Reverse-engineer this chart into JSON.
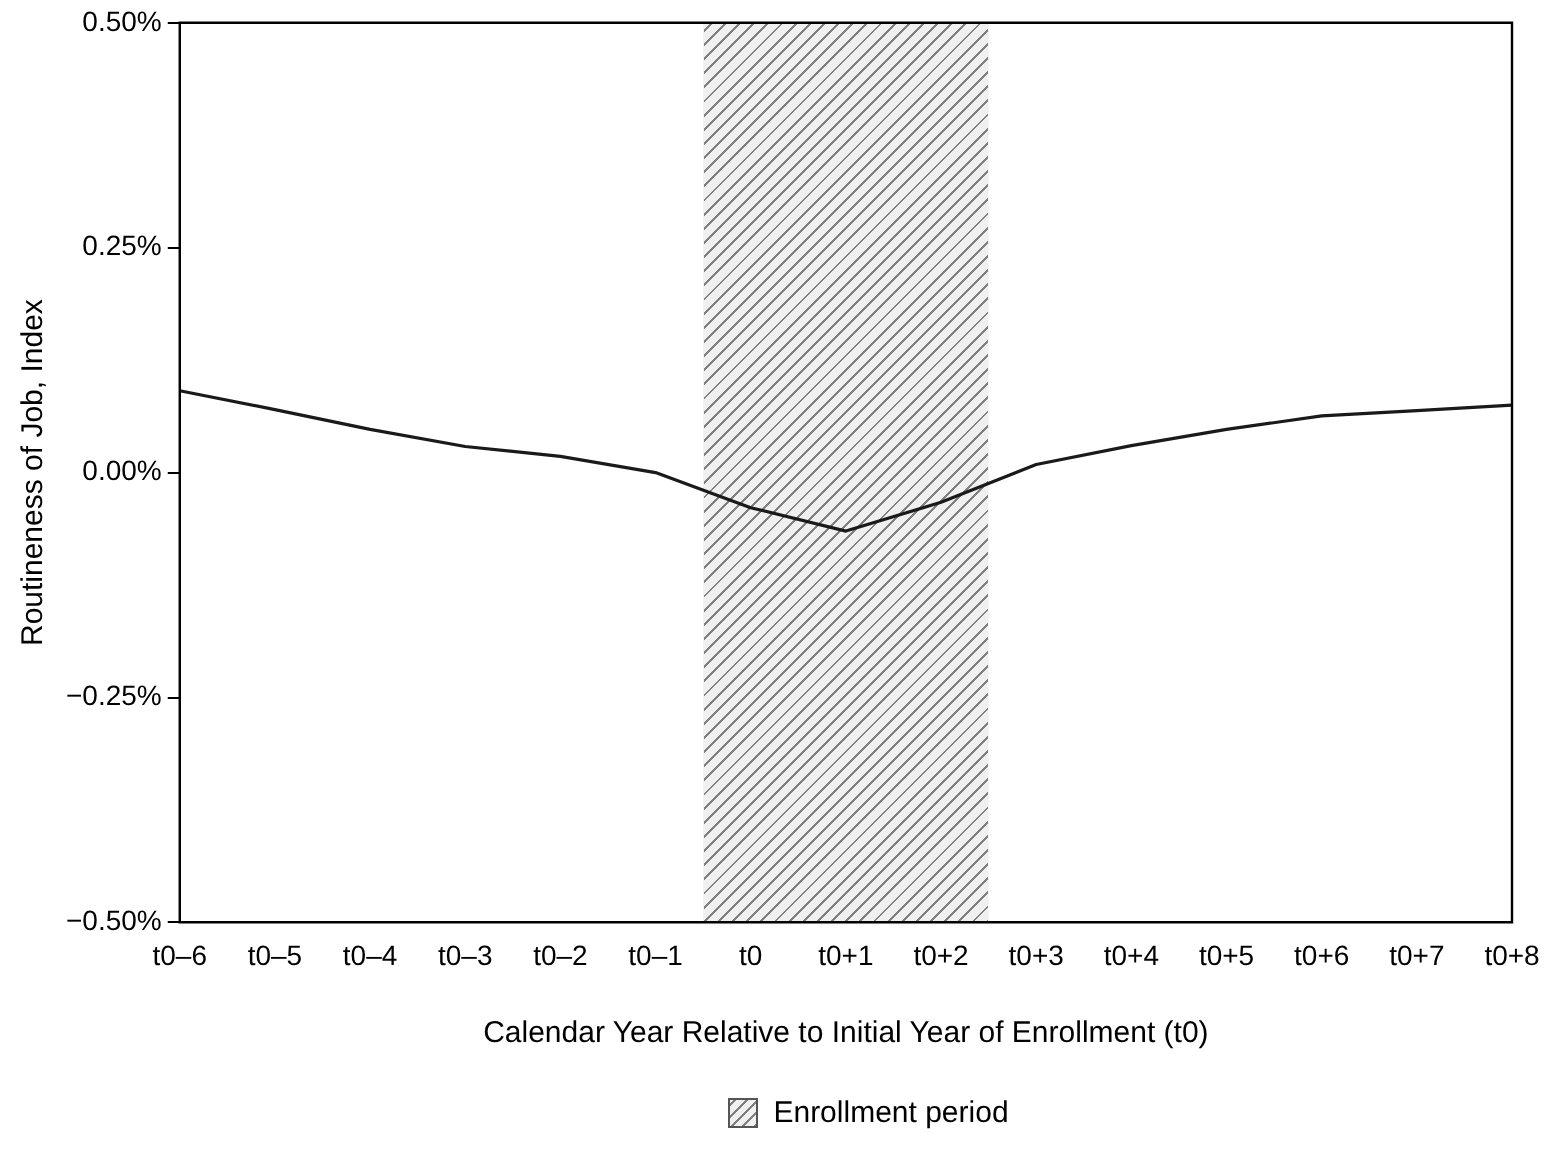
{
  "chart_data": {
    "type": "line",
    "xlabel": "Calendar Year Relative to Initial Year of Enrollment (t0)",
    "ylabel": "Routineness of Job, Index",
    "categories": [
      "t0–6",
      "t0–5",
      "t0–4",
      "t0–3",
      "t0–2",
      "t0–1",
      "t0",
      "t0+1",
      "t0+2",
      "t0+3",
      "t0+4",
      "t0+5",
      "t0+6",
      "t0+7",
      "t0+8"
    ],
    "series": [
      {
        "color": "#1a1a1a",
        "values": [
          0.091,
          0.07,
          0.048,
          0.029,
          0.018,
          0,
          -0.039,
          -0.065,
          -0.033,
          0.009,
          0.03,
          0.048,
          0.063,
          0.069,
          0.075
        ]
      }
    ],
    "ylim": [
      -0.5,
      0.5
    ],
    "yticks": [
      {
        "value": -0.5,
        "label": "−0.50%"
      },
      {
        "value": -0.25,
        "label": "−0.25%"
      },
      {
        "value": 0,
        "label": "0.00%"
      },
      {
        "value": 0.25,
        "label": "0.25%"
      },
      {
        "value": 0.5,
        "label": "0.50%"
      }
    ],
    "bands": [
      {
        "axis": "x",
        "from": "t0",
        "to": "t0+2",
        "label": "Enrollment period",
        "color": "#808080"
      }
    ],
    "legend": "bottom",
    "grid": false,
    "marker": "none",
    "line_style": "solid"
  }
}
